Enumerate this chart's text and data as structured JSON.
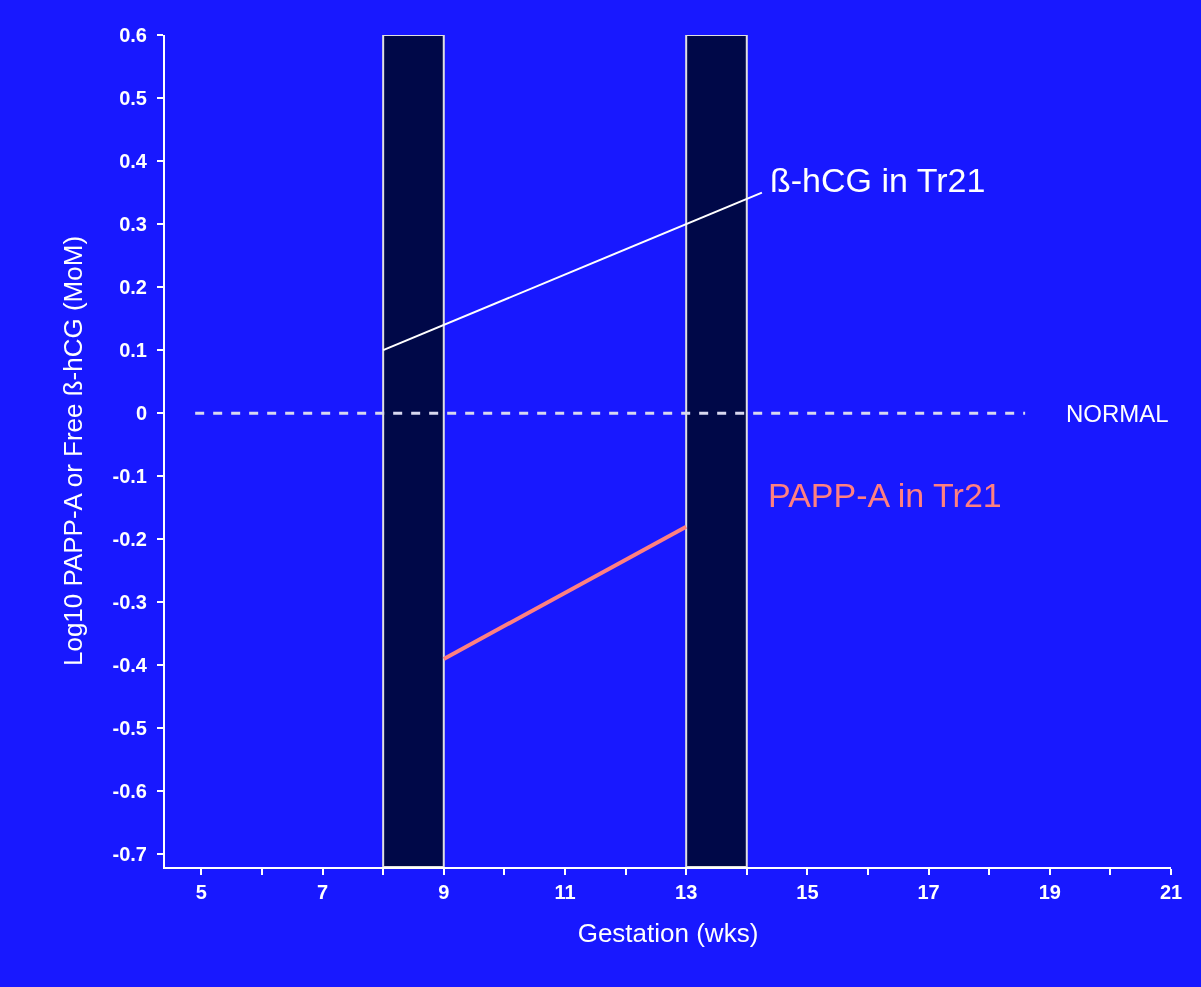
{
  "chart_data": {
    "type": "line",
    "xlabel": "Gestation (wks)",
    "ylabel": "Log10 PAPP-A or Free ß-hCG (MoM)",
    "xlim": [
      4.4,
      21
    ],
    "ylim": [
      -0.72,
      0.6
    ],
    "xticks": [
      5,
      {
        "value": 6,
        "label": null
      },
      7,
      {
        "value": 8,
        "label": null
      },
      9,
      {
        "value": 10,
        "label": null
      },
      11,
      {
        "value": 12,
        "label": null
      },
      13,
      {
        "value": 14,
        "label": null
      },
      15,
      {
        "value": 16,
        "label": null
      },
      17,
      {
        "value": 18,
        "label": null
      },
      19,
      {
        "value": 20,
        "label": null
      },
      21
    ],
    "yticks": [
      -0.7,
      -0.6,
      -0.5,
      -0.4,
      -0.3,
      -0.2,
      -0.1,
      0,
      0.1,
      0.2,
      0.3,
      0.4,
      0.5,
      0.6
    ],
    "grid": false,
    "legend": false,
    "marker": "none",
    "line_style": "solid",
    "series": [
      {
        "name": "ß-hCG in Tr21",
        "color": "#ffffff",
        "x": [
          8,
          14.25
        ],
        "values": [
          0.1,
          0.35
        ]
      },
      {
        "name": "PAPP-A in Tr21",
        "color": "#ff8080",
        "x": [
          9,
          13
        ],
        "values": [
          -0.39,
          -0.18
        ]
      }
    ],
    "ref_lines": [
      {
        "axis": "y",
        "value": 0,
        "label": "NORMAL",
        "color": "#d8d8f0",
        "line_style": "dashed"
      }
    ],
    "bands": [
      {
        "axis": "x",
        "from": 8,
        "to": 9,
        "color": "#000848"
      },
      {
        "axis": "x",
        "from": 13,
        "to": 14,
        "color": "#000848"
      }
    ]
  }
}
